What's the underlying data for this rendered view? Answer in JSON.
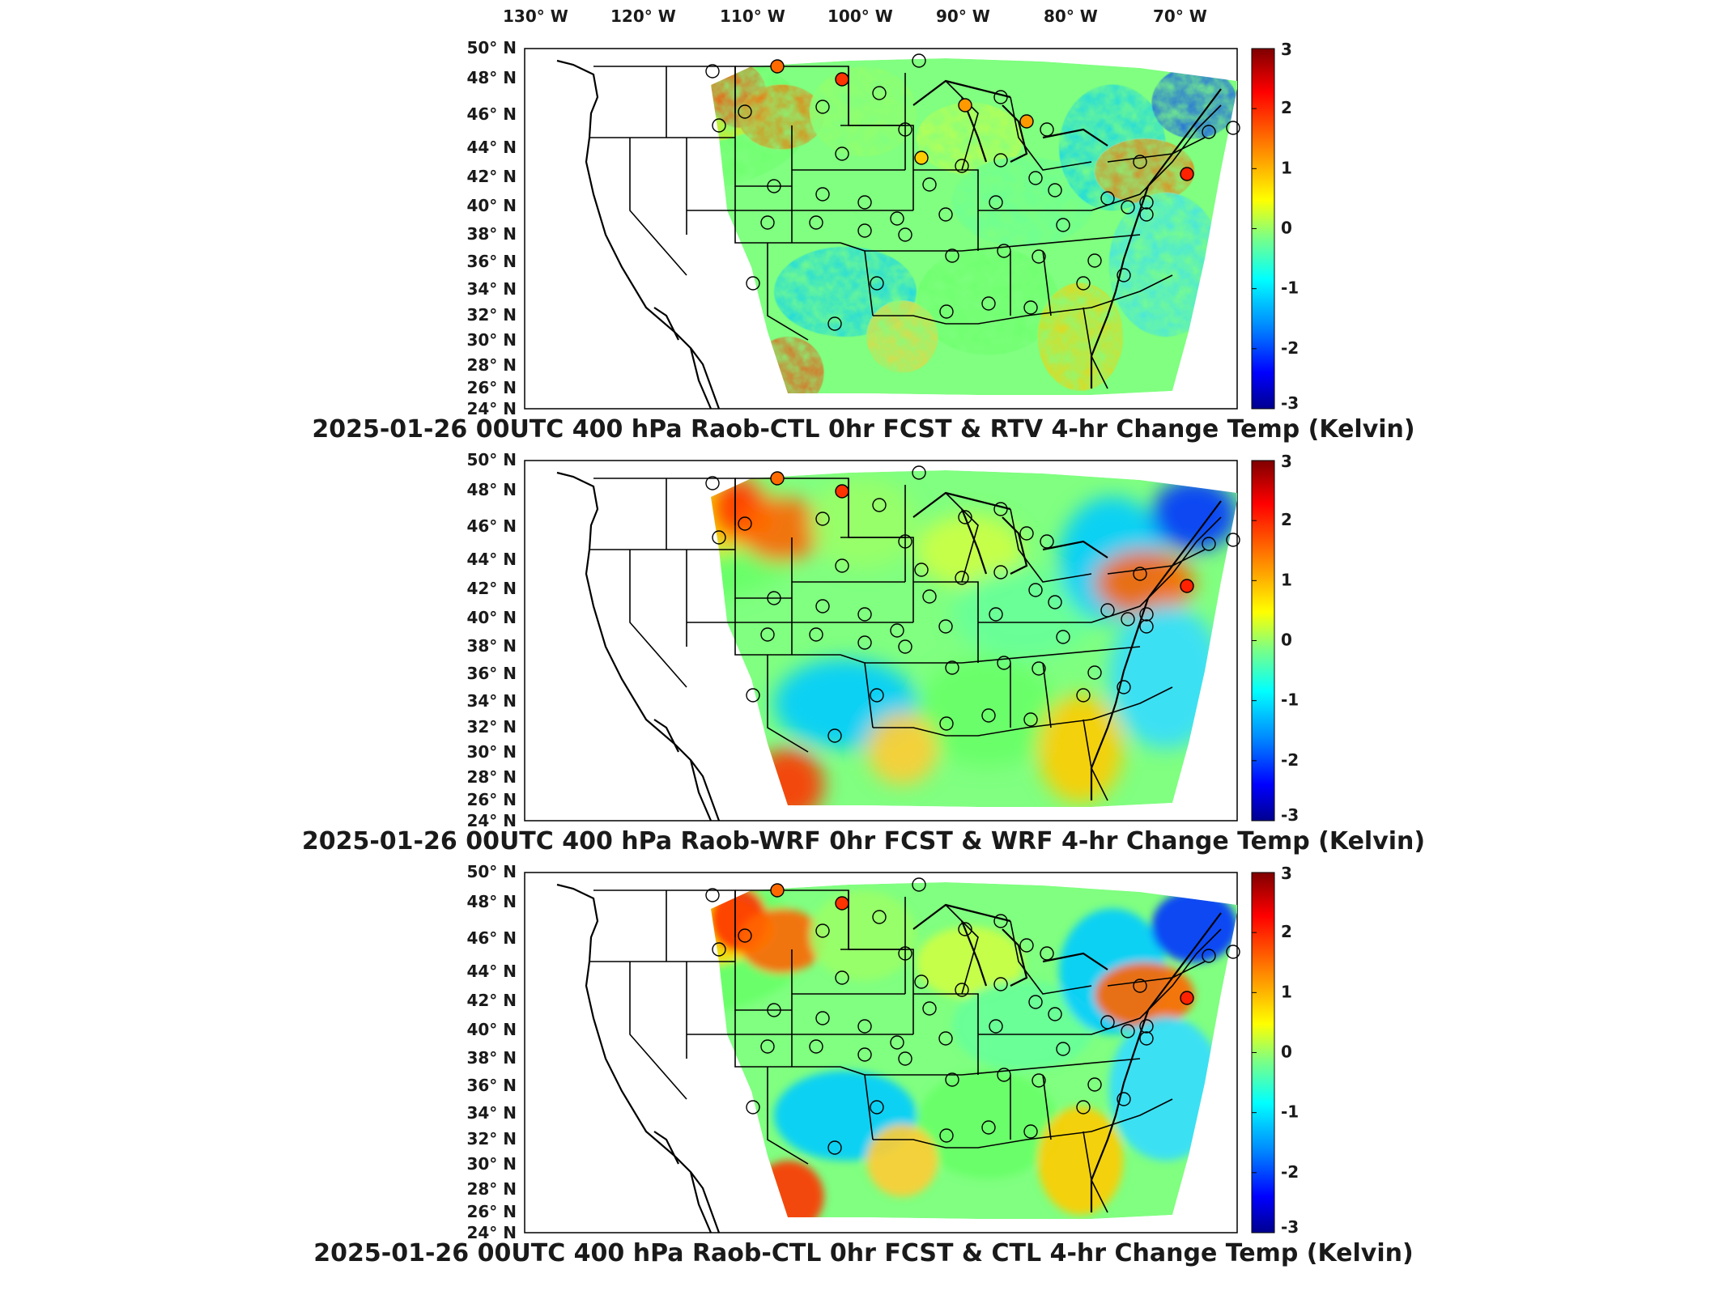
{
  "longitude_labels": [
    "130° W",
    "120° W",
    "110° W",
    "100° W",
    "90° W",
    "80° W",
    "70° W"
  ],
  "latitude_labels": [
    "50° N",
    "48° N",
    "46° N",
    "44° N",
    "42° N",
    "40° N",
    "38° N",
    "36° N",
    "34° N",
    "32° N",
    "30° N",
    "28° N",
    "26° N",
    "24° N"
  ],
  "colorbar": {
    "ticks": [
      "3",
      "2",
      "1",
      "0",
      "-1",
      "-2",
      "-3"
    ],
    "colors": [
      "#7f0000",
      "#ff0000",
      "#ff8800",
      "#ffff00",
      "#80ff80",
      "#00ffff",
      "#0080ff",
      "#0000ff",
      "#00008f"
    ]
  },
  "panels": [
    {
      "title": "2025-01-26 00UTC 400 hPa Raob-CTL 0hr FCST & RTV 4-hr Change Temp (Kelvin)",
      "style": "noisy"
    },
    {
      "title": "2025-01-26 00UTC 400 hPa Raob-WRF 0hr FCST & WRF 4-hr Change Temp (Kelvin)",
      "style": "smooth"
    },
    {
      "title": "2025-01-26 00UTC 400 hPa Raob-CTL 0hr FCST & CTL 4-hr Change Temp (Kelvin)",
      "style": "medium"
    }
  ]
}
